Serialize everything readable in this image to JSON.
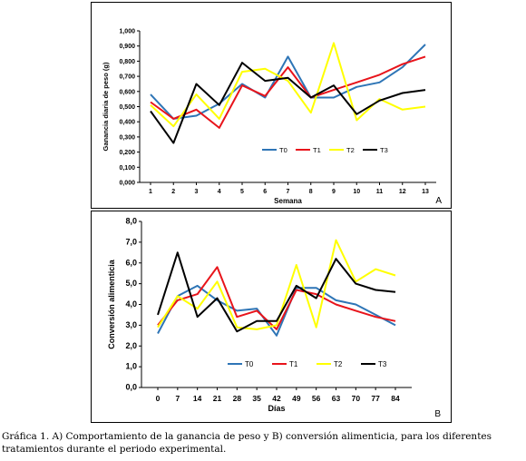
{
  "caption": "Gráfica 1. A) Comportamiento de la ganancia de peso y B) conversión alimenticia, para los diferentes tratamientos durante el periodo experimental.",
  "series_colors": {
    "T0": "#2e75b6",
    "T1": "#e8141b",
    "T2": "#ffff00",
    "T3": "#000000"
  },
  "chart_data": [
    {
      "panel_label": "A",
      "type": "line",
      "xlabel": "Semana",
      "ylabel": "Ganancia diaria de peso (g)",
      "x": [
        1,
        2,
        3,
        4,
        5,
        6,
        7,
        8,
        9,
        10,
        11,
        12,
        13
      ],
      "x_tick_labels": [
        "1",
        "2",
        "3",
        "4",
        "5",
        "6",
        "7",
        "8",
        "9",
        "10",
        "11",
        "12",
        "13"
      ],
      "ylim": [
        0,
        1
      ],
      "y_ticks": [
        "0,000",
        "0,100",
        "0,200",
        "0,300",
        "0,400",
        "0,500",
        "0,600",
        "0,700",
        "0,800",
        "0,900",
        "1,000"
      ],
      "legend_position": "center-right",
      "grid": false,
      "series": [
        {
          "name": "T0",
          "values": [
            0.58,
            0.42,
            0.44,
            0.52,
            0.65,
            0.56,
            0.83,
            0.56,
            0.56,
            0.63,
            0.66,
            0.76,
            0.91
          ]
        },
        {
          "name": "T1",
          "values": [
            0.53,
            0.42,
            0.48,
            0.36,
            0.64,
            0.57,
            0.76,
            0.56,
            0.61,
            0.66,
            0.71,
            0.78,
            0.83
          ]
        },
        {
          "name": "T2",
          "values": [
            0.51,
            0.37,
            0.58,
            0.42,
            0.73,
            0.75,
            0.67,
            0.46,
            0.92,
            0.41,
            0.55,
            0.48,
            0.5
          ]
        },
        {
          "name": "T3",
          "values": [
            0.47,
            0.26,
            0.65,
            0.51,
            0.79,
            0.67,
            0.69,
            0.56,
            0.64,
            0.45,
            0.54,
            0.59,
            0.61
          ]
        }
      ]
    },
    {
      "panel_label": "B",
      "type": "line",
      "xlabel": "Días",
      "ylabel": "Conversión alimenticia",
      "x": [
        0,
        7,
        14,
        21,
        28,
        35,
        42,
        49,
        56,
        63,
        70,
        77,
        84
      ],
      "x_tick_labels": [
        "0",
        "7",
        "14",
        "21",
        "28",
        "35",
        "42",
        "49",
        "56",
        "63",
        "70",
        "77",
        "84"
      ],
      "ylim": [
        0,
        8
      ],
      "y_ticks": [
        "0,0",
        "1,0",
        "2,0",
        "3,0",
        "4,0",
        "5,0",
        "6,0",
        "7,0",
        "8,0"
      ],
      "legend_position": "bottom-center",
      "grid": false,
      "series": [
        {
          "name": "T0",
          "values": [
            2.6,
            4.4,
            4.9,
            4.2,
            3.7,
            3.8,
            2.5,
            4.8,
            4.8,
            4.2,
            4.0,
            3.5,
            3.0
          ]
        },
        {
          "name": "T1",
          "values": [
            3.0,
            4.2,
            4.5,
            5.8,
            3.4,
            3.7,
            2.8,
            4.7,
            4.5,
            4.0,
            3.7,
            3.4,
            3.2
          ]
        },
        {
          "name": "T2",
          "values": [
            2.9,
            4.4,
            3.8,
            5.1,
            2.9,
            2.8,
            3.0,
            5.9,
            2.9,
            7.1,
            5.1,
            5.7,
            5.4
          ]
        },
        {
          "name": "T3",
          "values": [
            3.5,
            6.5,
            3.4,
            4.3,
            2.7,
            3.2,
            3.2,
            4.9,
            4.3,
            6.2,
            5.0,
            4.7,
            4.6
          ]
        }
      ]
    }
  ]
}
